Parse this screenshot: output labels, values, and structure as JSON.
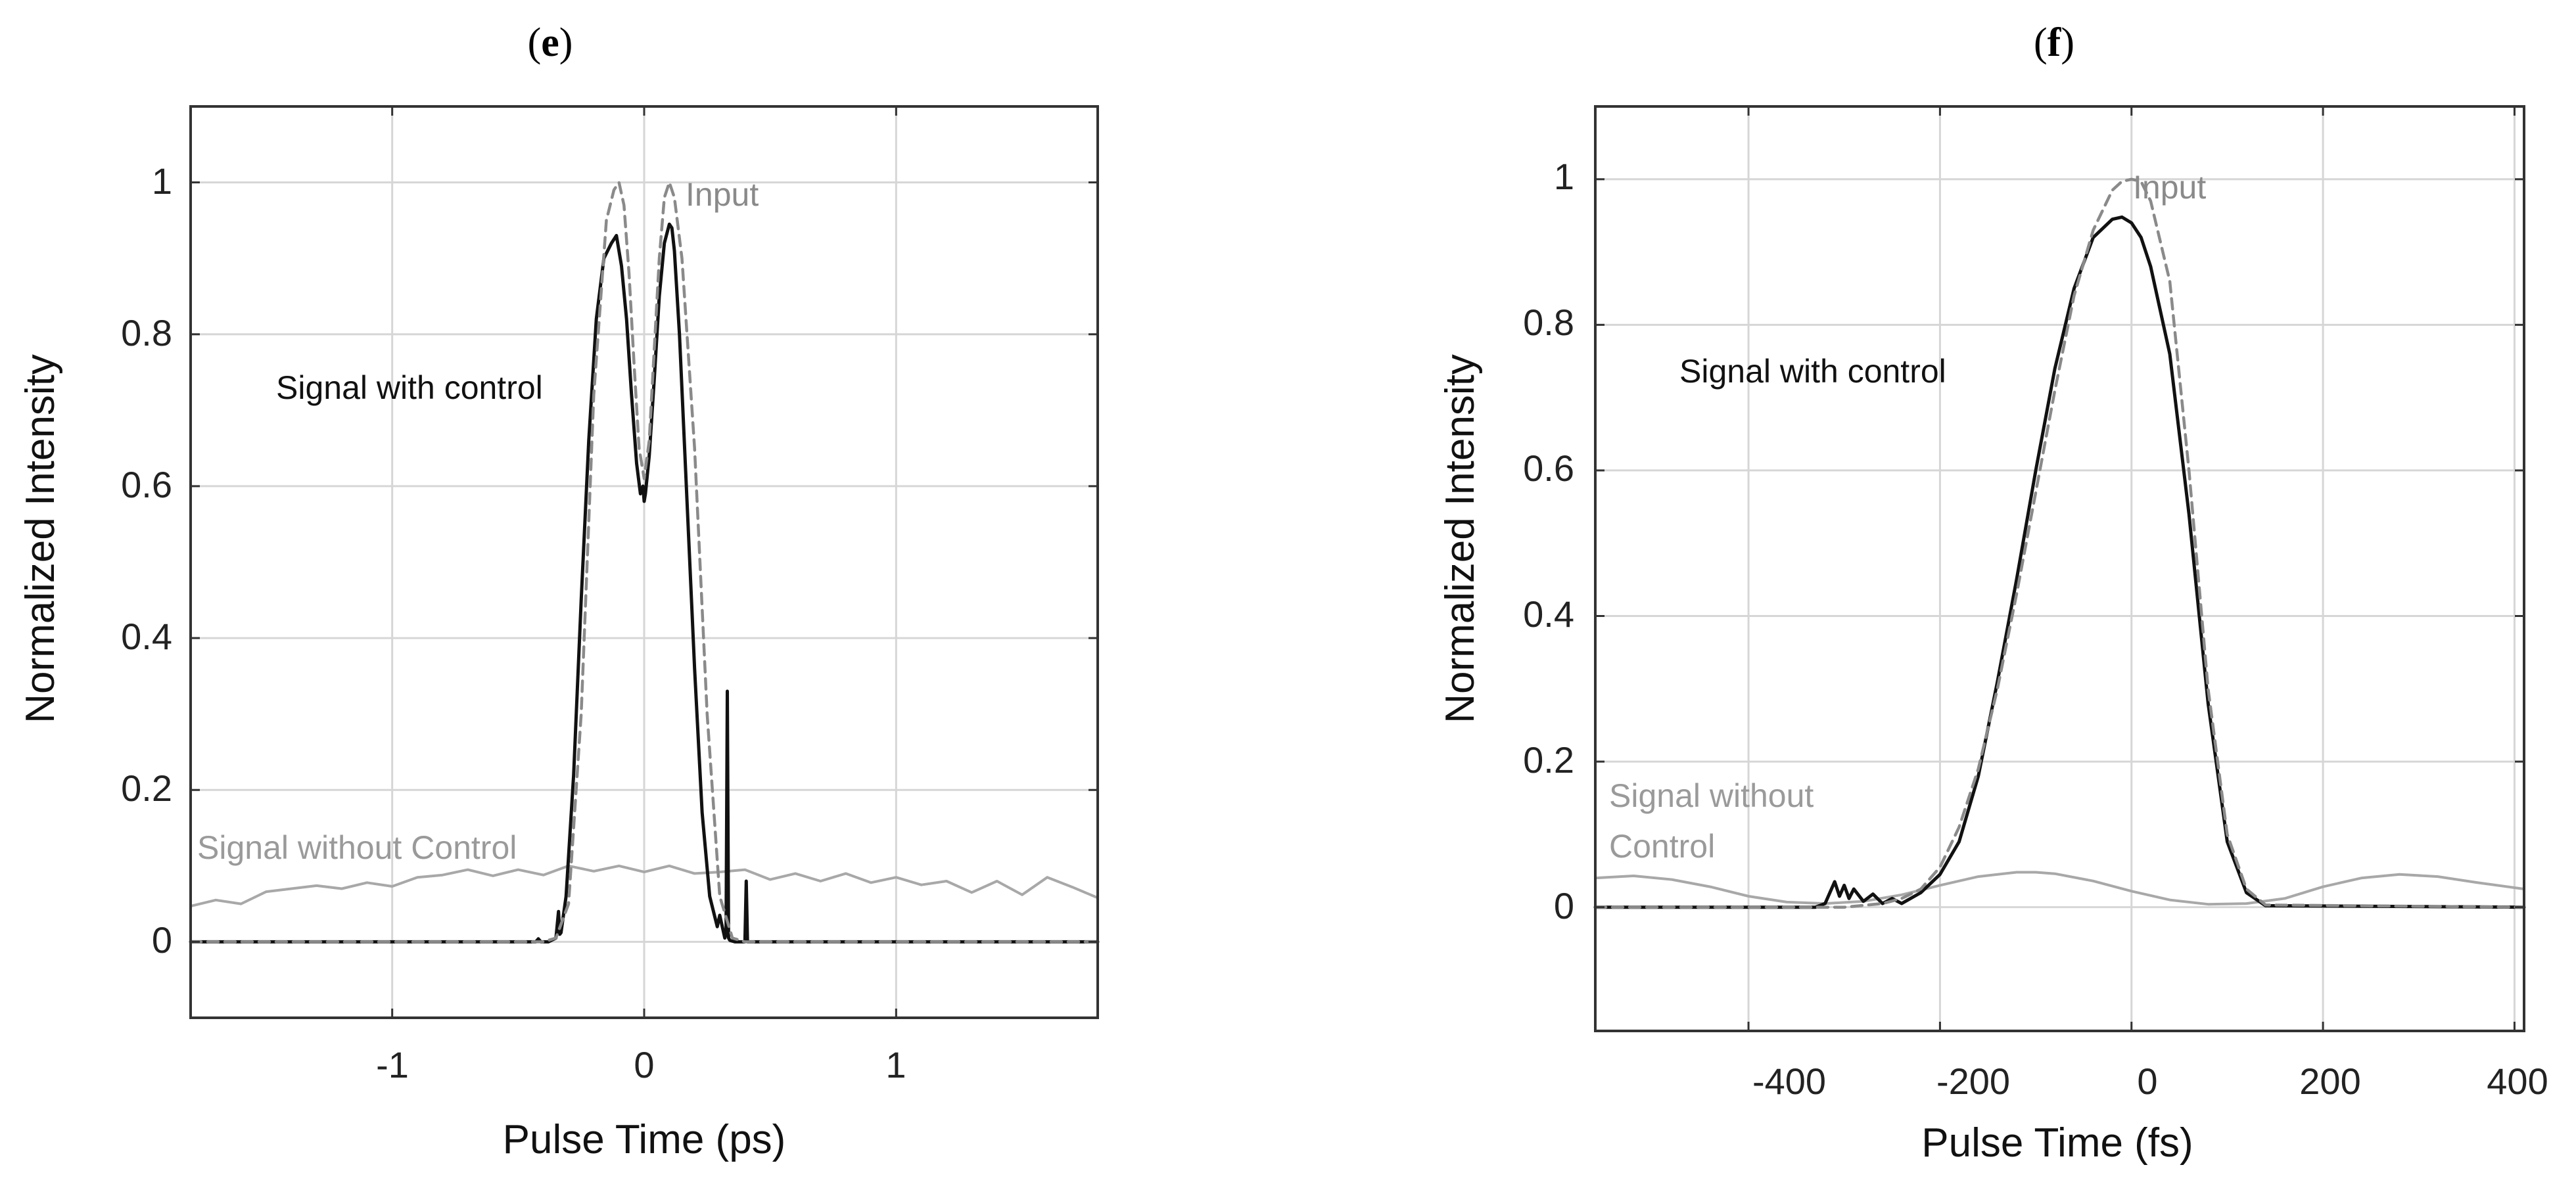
{
  "figure": {
    "panels": [
      {
        "id": "e",
        "letter_open": "(",
        "letter": "e",
        "letter_close": ")",
        "xlabel": "Pulse Time (ps)",
        "ylabel": "Normalized Intensity",
        "xtick_labels": [
          "-1",
          "0",
          "1"
        ],
        "ytick_labels": [
          "0",
          "0.2",
          "0.4",
          "0.6",
          "0.8",
          "1"
        ],
        "annotations": {
          "input": "Input",
          "signal_with_control": "Signal with control",
          "signal_without_control": "Signal without Control"
        }
      },
      {
        "id": "f",
        "letter_open": "(",
        "letter": "f",
        "letter_close": ")",
        "xlabel": "Pulse Time (fs)",
        "ylabel": "Normalized Intensity",
        "xtick_labels": [
          "-400",
          "-200",
          "0",
          "200",
          "400"
        ],
        "ytick_labels": [
          "0",
          "0.2",
          "0.4",
          "0.6",
          "0.8",
          "1"
        ],
        "annotations": {
          "input": "Input",
          "signal_with_control": "Signal with control",
          "signal_without_control_line1": "Signal without",
          "signal_without_control_line2": "Control"
        }
      }
    ]
  },
  "colors": {
    "signal_with_control": "#111111",
    "input": "#8a8a8a",
    "signal_without_control": "#a8a8a8",
    "grid": "#d6d6d6",
    "axes": "#333333"
  },
  "chart_data": [
    {
      "type": "line",
      "panel": "e",
      "xlabel": "Pulse Time (ps)",
      "ylabel": "Normalized Intensity",
      "xlim": [
        -1.8,
        1.8
      ],
      "ylim": [
        -0.1,
        1.1
      ],
      "xticks": [
        -1,
        0,
        1
      ],
      "yticks": [
        0,
        0.2,
        0.4,
        0.6,
        0.8,
        1
      ],
      "grid": true,
      "series": [
        {
          "name": "Input",
          "style": "dashed",
          "x": [
            -1.8,
            -0.4,
            -0.35,
            -0.3,
            -0.25,
            -0.2,
            -0.15,
            -0.12,
            -0.1,
            -0.08,
            -0.06,
            -0.04,
            -0.02,
            0.0,
            0.02,
            0.04,
            0.06,
            0.08,
            0.1,
            0.12,
            0.15,
            0.2,
            0.25,
            0.3,
            0.35,
            0.4,
            1.8
          ],
          "y": [
            0,
            0,
            0.005,
            0.05,
            0.3,
            0.72,
            0.95,
            0.99,
            1.0,
            0.97,
            0.88,
            0.76,
            0.65,
            0.61,
            0.66,
            0.78,
            0.9,
            0.98,
            1.0,
            0.98,
            0.9,
            0.65,
            0.3,
            0.06,
            0.005,
            0,
            0
          ]
        },
        {
          "name": "Signal with control",
          "style": "solid",
          "x": [
            -1.8,
            -0.43,
            -0.42,
            -0.41,
            -0.38,
            -0.35,
            -0.34,
            -0.335,
            -0.33,
            -0.31,
            -0.28,
            -0.25,
            -0.22,
            -0.19,
            -0.16,
            -0.13,
            -0.11,
            -0.09,
            -0.07,
            -0.05,
            -0.03,
            -0.015,
            -0.005,
            0.0,
            0.005,
            0.02,
            0.04,
            0.06,
            0.08,
            0.1,
            0.11,
            0.12,
            0.14,
            0.17,
            0.2,
            0.23,
            0.26,
            0.29,
            0.3,
            0.32,
            0.325,
            0.33,
            0.335,
            0.34,
            0.36,
            0.4,
            0.405,
            0.41,
            0.415,
            0.42,
            0.5,
            1.8
          ],
          "y": [
            0,
            0,
            0.004,
            0,
            0,
            0.005,
            0.04,
            0.01,
            0.012,
            0.06,
            0.22,
            0.45,
            0.66,
            0.82,
            0.9,
            0.92,
            0.93,
            0.89,
            0.82,
            0.72,
            0.63,
            0.59,
            0.6,
            0.58,
            0.59,
            0.64,
            0.74,
            0.85,
            0.92,
            0.945,
            0.94,
            0.91,
            0.8,
            0.58,
            0.36,
            0.17,
            0.06,
            0.02,
            0.035,
            0.005,
            0.01,
            0.33,
            0.005,
            0.002,
            0.0,
            0.0,
            0.08,
            0.0,
            0.0,
            0.0,
            0,
            0
          ]
        },
        {
          "name": "Signal without Control",
          "style": "solid",
          "x": [
            -1.8,
            -1.7,
            -1.6,
            -1.5,
            -1.4,
            -1.3,
            -1.2,
            -1.1,
            -1.0,
            -0.9,
            -0.8,
            -0.7,
            -0.6,
            -0.5,
            -0.4,
            -0.3,
            -0.2,
            -0.1,
            0.0,
            0.1,
            0.2,
            0.3,
            0.4,
            0.5,
            0.6,
            0.7,
            0.8,
            0.9,
            1.0,
            1.1,
            1.2,
            1.3,
            1.4,
            1.5,
            1.6,
            1.7,
            1.8
          ],
          "y": [
            0.047,
            0.055,
            0.05,
            0.066,
            0.07,
            0.074,
            0.07,
            0.078,
            0.073,
            0.085,
            0.088,
            0.095,
            0.087,
            0.095,
            0.088,
            0.1,
            0.093,
            0.1,
            0.092,
            0.1,
            0.09,
            0.092,
            0.095,
            0.082,
            0.09,
            0.08,
            0.09,
            0.078,
            0.085,
            0.075,
            0.08,
            0.065,
            0.08,
            0.062,
            0.085,
            0.072,
            0.058
          ]
        }
      ]
    },
    {
      "type": "line",
      "panel": "f",
      "xlabel": "Pulse Time (fs)",
      "ylabel": "Normalized Intensity",
      "xlim": [
        -560,
        410
      ],
      "ylim": [
        -0.17,
        1.1
      ],
      "xticks": [
        -400,
        -200,
        0,
        200,
        400
      ],
      "yticks": [
        0,
        0.2,
        0.4,
        0.6,
        0.8,
        1
      ],
      "grid": true,
      "series": [
        {
          "name": "Input",
          "style": "dashed",
          "x": [
            -560,
            -300,
            -260,
            -240,
            -220,
            -200,
            -180,
            -160,
            -140,
            -120,
            -100,
            -80,
            -60,
            -40,
            -20,
            -10,
            0,
            10,
            20,
            40,
            60,
            80,
            100,
            120,
            140,
            410
          ],
          "y": [
            0,
            0,
            0.005,
            0.012,
            0.025,
            0.055,
            0.11,
            0.19,
            0.3,
            0.43,
            0.57,
            0.71,
            0.84,
            0.93,
            0.985,
            0.997,
            1.0,
            0.997,
            0.97,
            0.86,
            0.6,
            0.3,
            0.1,
            0.025,
            0.003,
            0
          ]
        },
        {
          "name": "Signal with control",
          "style": "solid",
          "x": [
            -560,
            -330,
            -320,
            -315,
            -310,
            -305,
            -300,
            -295,
            -290,
            -280,
            -270,
            -260,
            -250,
            -240,
            -220,
            -200,
            -180,
            -160,
            -140,
            -120,
            -100,
            -80,
            -60,
            -40,
            -20,
            -10,
            0,
            10,
            20,
            40,
            60,
            80,
            100,
            120,
            140,
            410
          ],
          "y": [
            0,
            0,
            0.005,
            0.02,
            0.035,
            0.015,
            0.03,
            0.012,
            0.025,
            0.008,
            0.018,
            0.005,
            0.012,
            0.005,
            0.02,
            0.045,
            0.09,
            0.18,
            0.31,
            0.45,
            0.6,
            0.74,
            0.85,
            0.92,
            0.945,
            0.948,
            0.94,
            0.92,
            0.88,
            0.76,
            0.54,
            0.28,
            0.09,
            0.02,
            0.002,
            0
          ]
        },
        {
          "name": "Signal without Control",
          "style": "solid",
          "x": [
            -560,
            -520,
            -480,
            -440,
            -400,
            -360,
            -320,
            -280,
            -240,
            -200,
            -160,
            -120,
            -100,
            -80,
            -40,
            0,
            40,
            80,
            120,
            160,
            200,
            240,
            280,
            320,
            360,
            410
          ],
          "y": [
            0.04,
            0.043,
            0.038,
            0.028,
            0.015,
            0.007,
            0.005,
            0.008,
            0.017,
            0.03,
            0.042,
            0.048,
            0.048,
            0.046,
            0.036,
            0.022,
            0.01,
            0.004,
            0.005,
            0.012,
            0.028,
            0.04,
            0.045,
            0.042,
            0.034,
            0.025
          ]
        }
      ]
    }
  ]
}
